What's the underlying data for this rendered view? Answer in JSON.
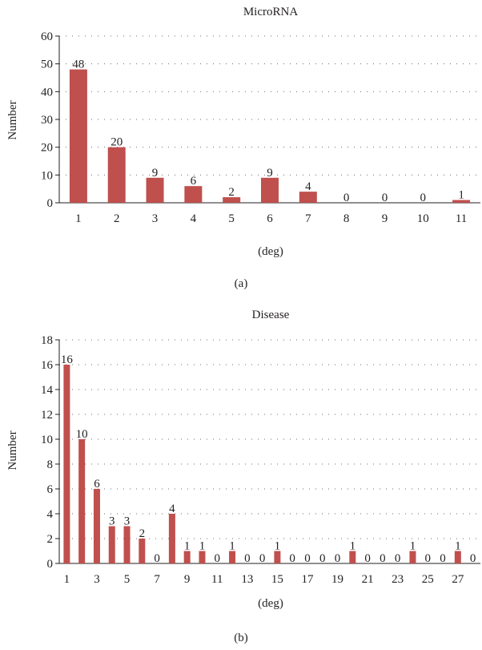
{
  "bar_color": "#c0504d",
  "chart_data": [
    {
      "type": "bar",
      "title": "MicroRNA",
      "xlabel": "(deg)",
      "ylabel": "Number",
      "panel_label": "(a)",
      "ylim": [
        0,
        60
      ],
      "yticks": [
        0,
        10,
        20,
        30,
        40,
        50,
        60
      ],
      "grid": true,
      "categories": [
        "1",
        "2",
        "3",
        "4",
        "5",
        "6",
        "7",
        "8",
        "9",
        "10",
        "11"
      ],
      "x_tick_labels": [
        "1",
        "2",
        "3",
        "4",
        "5",
        "6",
        "7",
        "8",
        "9",
        "10",
        "11"
      ],
      "values": [
        48,
        20,
        9,
        6,
        2,
        9,
        4,
        0,
        0,
        0,
        1
      ]
    },
    {
      "type": "bar",
      "title": "Disease",
      "xlabel": "(deg)",
      "ylabel": "Number",
      "panel_label": "(b)",
      "ylim": [
        0,
        18
      ],
      "yticks": [
        0,
        2,
        4,
        6,
        8,
        10,
        12,
        14,
        16,
        18
      ],
      "grid": true,
      "categories": [
        "1",
        "2",
        "3",
        "4",
        "5",
        "6",
        "7",
        "8",
        "9",
        "10",
        "11",
        "12",
        "13",
        "14",
        "15",
        "16",
        "17",
        "18",
        "19",
        "20",
        "21",
        "22",
        "23",
        "24",
        "25",
        "26",
        "27",
        "28"
      ],
      "x_tick_labels": [
        "1",
        "3",
        "5",
        "7",
        "9",
        "11",
        "13",
        "15",
        "17",
        "19",
        "21",
        "23",
        "25",
        "27"
      ],
      "values": [
        16,
        10,
        6,
        3,
        3,
        2,
        0,
        4,
        1,
        1,
        0,
        1,
        0,
        0,
        1,
        0,
        0,
        0,
        0,
        1,
        0,
        0,
        0,
        1,
        0,
        0,
        1,
        0
      ]
    }
  ]
}
